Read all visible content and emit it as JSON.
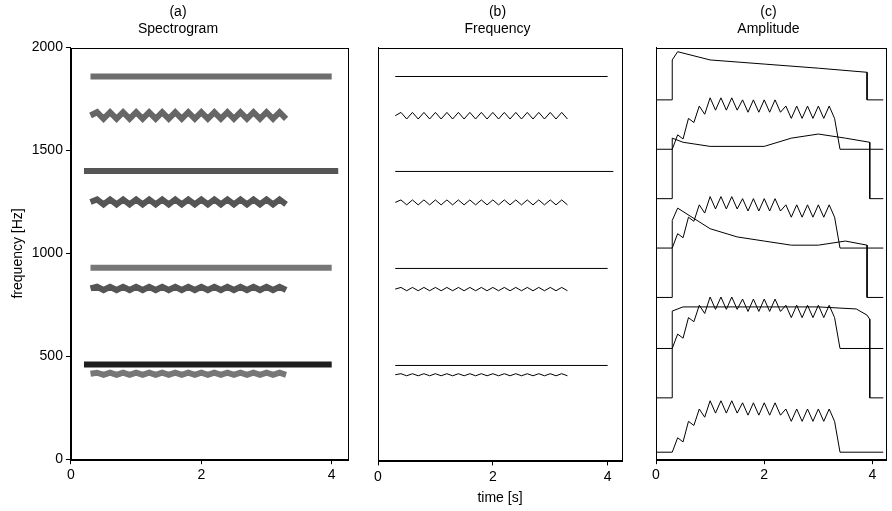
{
  "chart_data": [
    {
      "type": "spectrogram",
      "title": [
        "(a)",
        "Spectrogram"
      ],
      "y_label": "frequency [Hz]",
      "xlim": [
        0,
        4.25
      ],
      "xticks": [
        0,
        2,
        4
      ],
      "ylim": [
        0,
        2000
      ],
      "yticks": [
        0,
        500,
        1000,
        1500,
        2000
      ],
      "grid": false,
      "series": [
        {
          "color": "#777777",
          "x": [
            0.3,
            0.4,
            0.5,
            0.6,
            0.7,
            0.8,
            0.9,
            1,
            1.1,
            1.2,
            1.3,
            1.4,
            1.5,
            1.6,
            1.7,
            1.8,
            1.9,
            2,
            2.1,
            2.2,
            2.3,
            2.4,
            2.5,
            2.6,
            2.7,
            2.8,
            2.9,
            3,
            3.1,
            3.2,
            3.3
          ],
          "values": [
            415,
            420,
            410,
            420,
            410,
            420,
            410,
            420,
            410,
            420,
            410,
            420,
            410,
            420,
            410,
            420,
            410,
            420,
            410,
            420,
            410,
            420,
            410,
            420,
            410,
            420,
            410,
            420,
            410,
            420,
            410
          ]
        },
        {
          "color": "#1e1e1e",
          "x": [
            0.2,
            4
          ],
          "values": [
            460,
            460
          ]
        },
        {
          "color": "#555555",
          "x": [
            0.3,
            0.4,
            0.5,
            0.6,
            0.7,
            0.8,
            0.9,
            1,
            1.1,
            1.2,
            1.3,
            1.4,
            1.5,
            1.6,
            1.7,
            1.8,
            1.9,
            2,
            2.1,
            2.2,
            2.3,
            2.4,
            2.5,
            2.6,
            2.7,
            2.8,
            2.9,
            3,
            3.1,
            3.2,
            3.3
          ],
          "values": [
            830,
            838,
            822,
            838,
            822,
            838,
            822,
            838,
            822,
            838,
            822,
            838,
            822,
            838,
            822,
            838,
            822,
            838,
            822,
            838,
            822,
            838,
            822,
            838,
            822,
            838,
            822,
            838,
            822,
            838,
            822
          ]
        },
        {
          "color": "#777777",
          "x": [
            0.3,
            4
          ],
          "values": [
            930,
            930
          ]
        },
        {
          "color": "#555555",
          "x": [
            0.3,
            0.4,
            0.5,
            0.6,
            0.7,
            0.8,
            0.9,
            1,
            1.1,
            1.2,
            1.3,
            1.4,
            1.5,
            1.6,
            1.7,
            1.8,
            1.9,
            2,
            2.1,
            2.2,
            2.3,
            2.4,
            2.5,
            2.6,
            2.7,
            2.8,
            2.9,
            3,
            3.1,
            3.2,
            3.3
          ],
          "values": [
            1250,
            1262,
            1238,
            1262,
            1238,
            1262,
            1238,
            1262,
            1238,
            1262,
            1238,
            1262,
            1238,
            1262,
            1238,
            1262,
            1238,
            1262,
            1238,
            1262,
            1238,
            1262,
            1238,
            1262,
            1238,
            1262,
            1238,
            1262,
            1238,
            1262,
            1238
          ]
        },
        {
          "color": "#555555",
          "x": [
            0.2,
            4.1
          ],
          "values": [
            1400,
            1400
          ]
        },
        {
          "color": "#666666",
          "x": [
            0.3,
            0.4,
            0.5,
            0.6,
            0.7,
            0.8,
            0.9,
            1,
            1.1,
            1.2,
            1.3,
            1.4,
            1.5,
            1.6,
            1.7,
            1.8,
            1.9,
            2,
            2.1,
            2.2,
            2.3,
            2.4,
            2.5,
            2.6,
            2.7,
            2.8,
            2.9,
            3,
            3.1,
            3.2,
            3.3
          ],
          "values": [
            1670,
            1686,
            1654,
            1686,
            1654,
            1686,
            1654,
            1686,
            1654,
            1686,
            1654,
            1686,
            1654,
            1686,
            1654,
            1686,
            1654,
            1686,
            1654,
            1686,
            1654,
            1686,
            1654,
            1686,
            1654,
            1686,
            1654,
            1686,
            1654,
            1686,
            1654
          ]
        },
        {
          "color": "#6e6e6e",
          "x": [
            0.3,
            4
          ],
          "values": [
            1860,
            1860
          ]
        }
      ]
    },
    {
      "type": "line",
      "title": [
        "(b)",
        "Frequency"
      ],
      "x_label": "time [s]",
      "xlim": [
        0,
        4.25
      ],
      "xticks": [
        0,
        2,
        4
      ],
      "ylim": [
        0,
        2000
      ],
      "grid": false,
      "tick_labels": "x",
      "series": [
        {
          "color": "#000000",
          "x": [
            0.3,
            0.4,
            0.5,
            0.6,
            0.7,
            0.8,
            0.9,
            1,
            1.1,
            1.2,
            1.3,
            1.4,
            1.5,
            1.6,
            1.7,
            1.8,
            1.9,
            2,
            2.1,
            2.2,
            2.3,
            2.4,
            2.5,
            2.6,
            2.7,
            2.8,
            2.9,
            3,
            3.1,
            3.2,
            3.3
          ],
          "values": [
            415,
            420,
            410,
            420,
            410,
            420,
            410,
            420,
            410,
            420,
            410,
            420,
            410,
            420,
            410,
            420,
            410,
            420,
            410,
            420,
            410,
            420,
            410,
            420,
            410,
            420,
            410,
            420,
            410,
            420,
            410
          ]
        },
        {
          "color": "#000000",
          "x": [
            0.3,
            4
          ],
          "values": [
            460,
            460
          ]
        },
        {
          "color": "#000000",
          "x": [
            0.3,
            0.4,
            0.5,
            0.6,
            0.7,
            0.8,
            0.9,
            1,
            1.1,
            1.2,
            1.3,
            1.4,
            1.5,
            1.6,
            1.7,
            1.8,
            1.9,
            2,
            2.1,
            2.2,
            2.3,
            2.4,
            2.5,
            2.6,
            2.7,
            2.8,
            2.9,
            3,
            3.1,
            3.2,
            3.3
          ],
          "values": [
            830,
            838,
            822,
            838,
            822,
            838,
            822,
            838,
            822,
            838,
            822,
            838,
            822,
            838,
            822,
            838,
            822,
            838,
            822,
            838,
            822,
            838,
            822,
            838,
            822,
            838,
            822,
            838,
            822,
            838,
            822
          ]
        },
        {
          "color": "#000000",
          "x": [
            0.3,
            4
          ],
          "values": [
            930,
            930
          ]
        },
        {
          "color": "#000000",
          "x": [
            0.3,
            0.4,
            0.5,
            0.6,
            0.7,
            0.8,
            0.9,
            1,
            1.1,
            1.2,
            1.3,
            1.4,
            1.5,
            1.6,
            1.7,
            1.8,
            1.9,
            2,
            2.1,
            2.2,
            2.3,
            2.4,
            2.5,
            2.6,
            2.7,
            2.8,
            2.9,
            3,
            3.1,
            3.2,
            3.3
          ],
          "values": [
            1250,
            1262,
            1238,
            1262,
            1238,
            1262,
            1238,
            1262,
            1238,
            1262,
            1238,
            1262,
            1238,
            1262,
            1238,
            1262,
            1238,
            1262,
            1238,
            1262,
            1238,
            1262,
            1238,
            1262,
            1238,
            1262,
            1238,
            1262,
            1238,
            1262,
            1238
          ]
        },
        {
          "color": "#000000",
          "x": [
            0.3,
            4.1
          ],
          "values": [
            1400,
            1400
          ]
        },
        {
          "color": "#000000",
          "x": [
            0.3,
            0.4,
            0.5,
            0.6,
            0.7,
            0.8,
            0.9,
            1,
            1.1,
            1.2,
            1.3,
            1.4,
            1.5,
            1.6,
            1.7,
            1.8,
            1.9,
            2,
            2.1,
            2.2,
            2.3,
            2.4,
            2.5,
            2.6,
            2.7,
            2.8,
            2.9,
            3,
            3.1,
            3.2,
            3.3
          ],
          "values": [
            1670,
            1686,
            1654,
            1686,
            1654,
            1686,
            1654,
            1686,
            1654,
            1686,
            1654,
            1686,
            1654,
            1686,
            1654,
            1686,
            1654,
            1686,
            1654,
            1686,
            1654,
            1686,
            1654,
            1686,
            1654,
            1686,
            1654,
            1686,
            1654,
            1686,
            1654
          ]
        },
        {
          "color": "#000000",
          "x": [
            0.3,
            4
          ],
          "values": [
            1860,
            1860
          ]
        }
      ]
    },
    {
      "type": "line",
      "title": [
        "(c)",
        "Amplitude"
      ],
      "xlim": [
        0,
        4.25
      ],
      "xticks": [
        0,
        2,
        4
      ],
      "ylim": [
        0,
        100
      ],
      "grid": false,
      "tick_labels": "x",
      "series": [
        {
          "color": "#000000",
          "x": [
            0,
            0.3,
            0.4,
            0.5,
            0.6,
            0.7,
            0.8,
            0.9,
            1,
            1.1,
            1.2,
            1.3,
            1.4,
            1.5,
            1.6,
            1.7,
            1.8,
            1.9,
            2,
            2.1,
            2.2,
            2.3,
            2.4,
            2.5,
            2.6,
            2.7,
            2.8,
            2.9,
            3,
            3.1,
            3.2,
            3.3,
            3.4,
            4.2
          ],
          "values": [
            1.7,
            1.7,
            5.2,
            4.2,
            9.2,
            8.2,
            12.2,
            10.2,
            14.2,
            11.2,
            14.2,
            11.2,
            14.2,
            11.2,
            13.7,
            10.7,
            13.7,
            10.7,
            13.7,
            10.7,
            13.7,
            10.7,
            12.2,
            9.2,
            12.2,
            9.2,
            12.2,
            9.2,
            12.2,
            9.2,
            12.2,
            9.2,
            1.7,
            1.7
          ]
        },
        {
          "color": "#000000",
          "x": [
            0,
            0.3,
            0.3,
            0.5,
            1,
            2,
            3,
            3.7,
            3.9,
            3.95,
            3.95,
            4.2
          ],
          "values": [
            14.9,
            14.9,
            36,
            37,
            37,
            37,
            37,
            36.5,
            35,
            34,
            14.9,
            14.9
          ]
        },
        {
          "color": "#000000",
          "x": [
            0,
            0.3,
            0.4,
            0.5,
            0.6,
            0.7,
            0.8,
            0.9,
            1,
            1.1,
            1.2,
            1.3,
            1.4,
            1.5,
            1.6,
            1.7,
            1.8,
            1.9,
            2,
            2.1,
            2.2,
            2.3,
            2.4,
            2.5,
            2.6,
            2.7,
            2.8,
            2.9,
            3,
            3.1,
            3.2,
            3.3,
            3.4,
            4.2
          ],
          "values": [
            26.9,
            26.9,
            30.4,
            29.4,
            34.4,
            33.4,
            37.4,
            35.4,
            39.4,
            36.4,
            39.4,
            36.4,
            39.4,
            36.4,
            38.9,
            35.9,
            38.9,
            35.9,
            38.9,
            35.9,
            38.9,
            35.9,
            37.4,
            34.4,
            37.4,
            34.4,
            37.4,
            34.4,
            37.4,
            34.4,
            37.4,
            34.4,
            26.9,
            26.9
          ]
        },
        {
          "color": "#000000",
          "x": [
            0,
            0.3,
            0.3,
            0.4,
            1,
            1.5,
            2,
            2.5,
            3,
            3.5,
            3.9,
            3.9,
            4.2
          ],
          "values": [
            39.3,
            39.3,
            58,
            61,
            56,
            54,
            53,
            52,
            52,
            53,
            52,
            39.3,
            39.3
          ]
        },
        {
          "color": "#000000",
          "x": [
            0,
            0.3,
            0.4,
            0.5,
            0.6,
            0.7,
            0.8,
            0.9,
            1,
            1.1,
            1.2,
            1.3,
            1.4,
            1.5,
            1.6,
            1.7,
            1.8,
            1.9,
            2,
            2.1,
            2.2,
            2.3,
            2.4,
            2.5,
            2.6,
            2.7,
            2.8,
            2.9,
            3,
            3.1,
            3.2,
            3.3,
            3.4,
            4.2
          ],
          "values": [
            51.3,
            51.3,
            54.8,
            53.8,
            58.8,
            57.8,
            61.8,
            59.8,
            63.8,
            60.8,
            63.8,
            60.8,
            63.8,
            60.8,
            63.3,
            60.3,
            63.3,
            60.3,
            63.3,
            60.3,
            63.3,
            60.3,
            61.8,
            58.8,
            61.8,
            58.8,
            61.8,
            58.8,
            61.8,
            58.8,
            61.8,
            58.8,
            51.3,
            51.3
          ]
        },
        {
          "color": "#000000",
          "x": [
            0,
            0.3,
            0.3,
            0.5,
            1,
            2,
            2.5,
            3,
            3.5,
            3.95,
            3.95,
            4.2
          ],
          "values": [
            63.3,
            63.3,
            78,
            77,
            76,
            76,
            78,
            79,
            78,
            77,
            63.3,
            63.3
          ]
        },
        {
          "color": "#000000",
          "x": [
            0,
            0.3,
            0.4,
            0.5,
            0.6,
            0.7,
            0.8,
            0.9,
            1,
            1.1,
            1.2,
            1.3,
            1.4,
            1.5,
            1.6,
            1.7,
            1.8,
            1.9,
            2,
            2.1,
            2.2,
            2.3,
            2.4,
            2.5,
            2.6,
            2.7,
            2.8,
            2.9,
            3,
            3.1,
            3.2,
            3.3,
            3.4,
            4.2
          ],
          "values": [
            75.3,
            75.3,
            78.8,
            77.8,
            82.8,
            81.8,
            85.8,
            83.8,
            87.8,
            84.8,
            87.8,
            84.8,
            87.8,
            84.8,
            87.3,
            84.3,
            87.3,
            84.3,
            87.3,
            84.3,
            87.3,
            84.3,
            85.8,
            82.8,
            85.8,
            82.8,
            85.8,
            82.8,
            85.8,
            82.8,
            85.8,
            82.8,
            75.3,
            75.3
          ]
        },
        {
          "color": "#000000",
          "x": [
            0,
            0.3,
            0.3,
            0.4,
            1,
            2,
            3,
            3.9,
            3.9,
            4.2
          ],
          "values": [
            87.3,
            87.3,
            97,
            99,
            97,
            96,
            95,
            94,
            87.3,
            87.3
          ]
        }
      ]
    }
  ]
}
